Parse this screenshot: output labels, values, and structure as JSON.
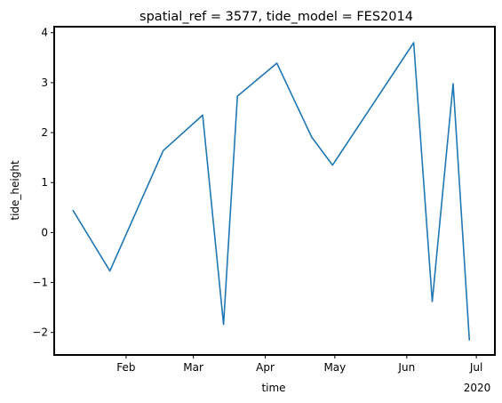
{
  "chart_data": {
    "type": "line",
    "title": "spatial_ref = 3577, tide_model = FES2014",
    "xlabel": "time",
    "ylabel": "tide_height",
    "x_year_label": "2020",
    "xlim": [
      "2020-01-01",
      "2020-07-09"
    ],
    "ylim": [
      -2.45,
      4.12
    ],
    "x_ticks": [
      {
        "label": "Feb",
        "date": "2020-02-01"
      },
      {
        "label": "Mar",
        "date": "2020-03-01"
      },
      {
        "label": "Apr",
        "date": "2020-04-01"
      },
      {
        "label": "May",
        "date": "2020-05-01"
      },
      {
        "label": "Jun",
        "date": "2020-06-01"
      },
      {
        "label": "Jul",
        "date": "2020-07-01"
      }
    ],
    "y_ticks": [
      {
        "label": "4",
        "value": 4
      },
      {
        "label": "3",
        "value": 3
      },
      {
        "label": "2",
        "value": 2
      },
      {
        "label": "1",
        "value": 1
      },
      {
        "label": "0",
        "value": 0
      },
      {
        "label": "−1",
        "value": -1
      },
      {
        "label": "−2",
        "value": -2
      }
    ],
    "grid": false,
    "series": [
      {
        "color": "#1f77b4",
        "points": [
          {
            "x": "2020-01-09",
            "y": 0.45
          },
          {
            "x": "2020-01-25",
            "y": -0.77
          },
          {
            "x": "2020-02-17",
            "y": 1.64
          },
          {
            "x": "2020-03-05",
            "y": 2.35
          },
          {
            "x": "2020-03-14",
            "y": -1.84
          },
          {
            "x": "2020-03-20",
            "y": 2.73
          },
          {
            "x": "2020-04-06",
            "y": 3.39
          },
          {
            "x": "2020-04-21",
            "y": 1.91
          },
          {
            "x": "2020-04-30",
            "y": 1.35
          },
          {
            "x": "2020-06-04",
            "y": 3.8
          },
          {
            "x": "2020-06-12",
            "y": -1.38
          },
          {
            "x": "2020-06-21",
            "y": 2.98
          },
          {
            "x": "2020-06-28",
            "y": -2.16
          }
        ]
      }
    ]
  }
}
